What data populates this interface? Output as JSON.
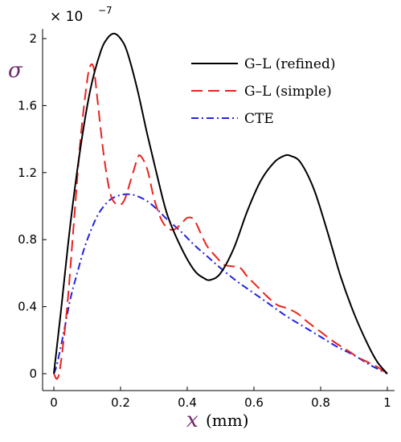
{
  "chart_data": {
    "type": "line",
    "y_scale_factor": "× 10",
    "y_scale_exponent": "−7",
    "ylabel": "σ",
    "xlabel_symbol": "x",
    "xlabel_unit": "(mm)",
    "xlim": [
      0,
      1
    ],
    "ylim": [
      0,
      2
    ],
    "x_ticks": [
      "0",
      "0.2",
      "0.4",
      "0.6",
      "0.8",
      "1"
    ],
    "y_ticks": [
      "0",
      "0.4",
      "0.8",
      "1.2",
      "1.6",
      "2"
    ],
    "legend_position": "top-right",
    "series": [
      {
        "name": "G–L (refined)",
        "color": "#000000",
        "dash": "solid",
        "points": [
          [
            0,
            0
          ],
          [
            0.02,
            0.35
          ],
          [
            0.05,
            0.9
          ],
          [
            0.08,
            1.35
          ],
          [
            0.11,
            1.7
          ],
          [
            0.14,
            1.92
          ],
          [
            0.16,
            2.0
          ],
          [
            0.18,
            2.03
          ],
          [
            0.2,
            2.0
          ],
          [
            0.22,
            1.92
          ],
          [
            0.25,
            1.7
          ],
          [
            0.28,
            1.43
          ],
          [
            0.31,
            1.18
          ],
          [
            0.34,
            0.95
          ],
          [
            0.38,
            0.76
          ],
          [
            0.42,
            0.62
          ],
          [
            0.45,
            0.57
          ],
          [
            0.47,
            0.56
          ],
          [
            0.5,
            0.6
          ],
          [
            0.54,
            0.75
          ],
          [
            0.58,
            0.97
          ],
          [
            0.62,
            1.15
          ],
          [
            0.66,
            1.26
          ],
          [
            0.69,
            1.3
          ],
          [
            0.71,
            1.3
          ],
          [
            0.74,
            1.26
          ],
          [
            0.78,
            1.1
          ],
          [
            0.82,
            0.85
          ],
          [
            0.86,
            0.58
          ],
          [
            0.9,
            0.36
          ],
          [
            0.94,
            0.18
          ],
          [
            0.97,
            0.07
          ],
          [
            1.0,
            0.0
          ]
        ]
      },
      {
        "name": "G–L (simple)",
        "color": "#e8231f",
        "dash": "long-dash",
        "points": [
          [
            0,
            0
          ],
          [
            0.01,
            -0.03
          ],
          [
            0.02,
            0.05
          ],
          [
            0.04,
            0.4
          ],
          [
            0.06,
            0.9
          ],
          [
            0.08,
            1.4
          ],
          [
            0.1,
            1.75
          ],
          [
            0.11,
            1.84
          ],
          [
            0.12,
            1.82
          ],
          [
            0.13,
            1.65
          ],
          [
            0.15,
            1.3
          ],
          [
            0.17,
            1.07
          ],
          [
            0.19,
            1.01
          ],
          [
            0.21,
            1.03
          ],
          [
            0.23,
            1.15
          ],
          [
            0.25,
            1.28
          ],
          [
            0.26,
            1.3
          ],
          [
            0.28,
            1.22
          ],
          [
            0.3,
            1.05
          ],
          [
            0.32,
            0.93
          ],
          [
            0.34,
            0.87
          ],
          [
            0.36,
            0.86
          ],
          [
            0.38,
            0.89
          ],
          [
            0.4,
            0.93
          ],
          [
            0.42,
            0.92
          ],
          [
            0.44,
            0.84
          ],
          [
            0.46,
            0.76
          ],
          [
            0.49,
            0.69
          ],
          [
            0.51,
            0.65
          ],
          [
            0.54,
            0.64
          ],
          [
            0.56,
            0.63
          ],
          [
            0.58,
            0.58
          ],
          [
            0.61,
            0.52
          ],
          [
            0.64,
            0.46
          ],
          [
            0.67,
            0.41
          ],
          [
            0.7,
            0.39
          ],
          [
            0.73,
            0.36
          ],
          [
            0.76,
            0.31
          ],
          [
            0.8,
            0.25
          ],
          [
            0.84,
            0.19
          ],
          [
            0.88,
            0.14
          ],
          [
            0.91,
            0.1
          ],
          [
            0.94,
            0.07
          ],
          [
            0.97,
            0.04
          ],
          [
            1.0,
            0.0
          ]
        ]
      },
      {
        "name": "CTE",
        "color": "#2323e0",
        "dash": "dash-dot",
        "points": [
          [
            0,
            0
          ],
          [
            0.01,
            0.06
          ],
          [
            0.03,
            0.25
          ],
          [
            0.05,
            0.45
          ],
          [
            0.07,
            0.6
          ],
          [
            0.09,
            0.74
          ],
          [
            0.11,
            0.85
          ],
          [
            0.13,
            0.94
          ],
          [
            0.15,
            1.0
          ],
          [
            0.17,
            1.04
          ],
          [
            0.19,
            1.06
          ],
          [
            0.21,
            1.07
          ],
          [
            0.23,
            1.07
          ],
          [
            0.25,
            1.06
          ],
          [
            0.28,
            1.03
          ],
          [
            0.31,
            0.98
          ],
          [
            0.34,
            0.92
          ],
          [
            0.38,
            0.85
          ],
          [
            0.42,
            0.77
          ],
          [
            0.46,
            0.7
          ],
          [
            0.5,
            0.63
          ],
          [
            0.55,
            0.55
          ],
          [
            0.6,
            0.48
          ],
          [
            0.65,
            0.41
          ],
          [
            0.7,
            0.34
          ],
          [
            0.75,
            0.28
          ],
          [
            0.8,
            0.22
          ],
          [
            0.85,
            0.16
          ],
          [
            0.9,
            0.11
          ],
          [
            0.95,
            0.05
          ],
          [
            1.0,
            0.0
          ]
        ]
      }
    ]
  }
}
